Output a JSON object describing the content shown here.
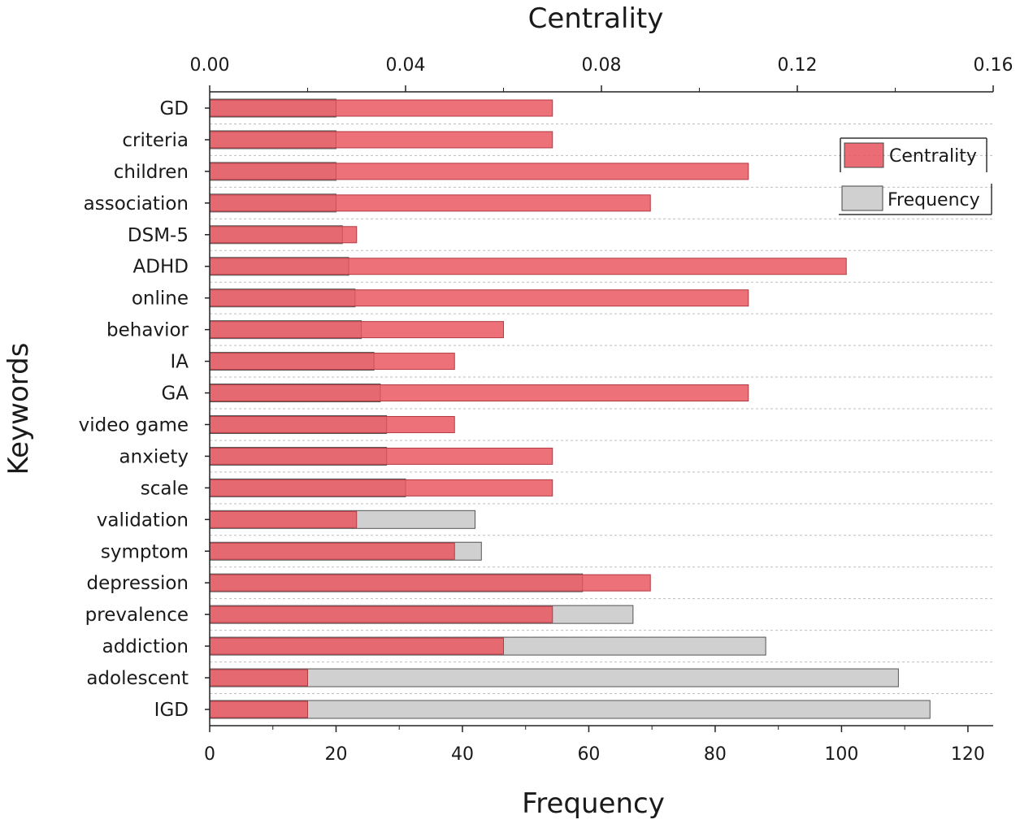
{
  "chart_data": {
    "type": "bar",
    "orientation": "horizontal",
    "ylabel": "Keywords",
    "categories": [
      "GD",
      "criteria",
      "children",
      "association",
      "DSM-5",
      "ADHD",
      "online",
      "behavior",
      "IA",
      "GA",
      "video game",
      "anxiety",
      "scale",
      "validation",
      "symptom",
      "depression",
      "prevalence",
      "addiction",
      "adolescent",
      "IGD"
    ],
    "series": [
      {
        "name": "Frequency",
        "axis": "bottom",
        "color": "#d0d0d0",
        "values": [
          20,
          20,
          20,
          20,
          21,
          22,
          23,
          24,
          26,
          27,
          28,
          28,
          31,
          42,
          43,
          59,
          67,
          88,
          109,
          114
        ]
      },
      {
        "name": "Centrality",
        "axis": "top",
        "color": "#e8525c",
        "values": [
          0.07,
          0.07,
          0.11,
          0.09,
          0.03,
          0.13,
          0.11,
          0.06,
          0.05,
          0.11,
          0.05,
          0.07,
          0.07,
          0.03,
          0.05,
          0.09,
          0.07,
          0.06,
          0.02,
          0.02
        ]
      }
    ],
    "x_bottom": {
      "title": "Frequency",
      "range": [
        0,
        124
      ],
      "ticks": [
        0,
        20,
        40,
        60,
        80,
        100,
        120
      ],
      "tick_labels": [
        "0",
        "20",
        "40",
        "60",
        "80",
        "100",
        "120"
      ]
    },
    "x_top": {
      "title": "Centrality",
      "range": [
        0,
        0.16
      ],
      "ticks": [
        0,
        0.04,
        0.08,
        0.12,
        0.16
      ],
      "tick_labels": [
        "0.00",
        "0.04",
        "0.08",
        "0.12",
        "0.16"
      ]
    },
    "legend": {
      "position": "top-right",
      "entries": [
        "Centrality",
        "Frequency"
      ]
    },
    "grid": "horizontal dotted"
  }
}
